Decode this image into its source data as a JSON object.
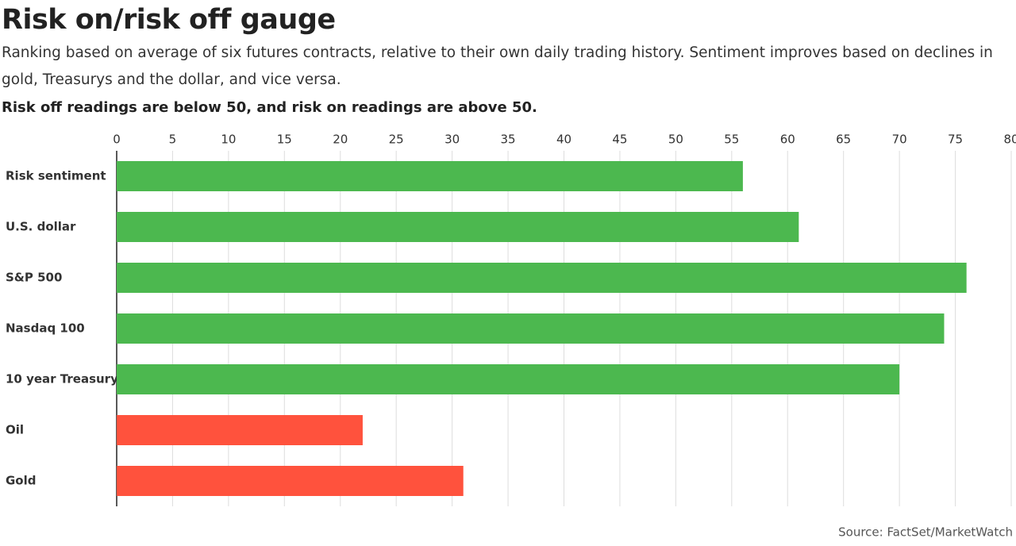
{
  "chart_data": {
    "type": "bar",
    "orientation": "horizontal",
    "title": "Risk on/risk off gauge",
    "subtitle": "Ranking based on average of six futures contracts, relative to their own daily trading history. Sentiment improves based on declines in gold, Treasurys and the dollar, and vice versa.",
    "note": "Risk off readings are below 50, and risk on readings are above 50.",
    "source": "Source: FactSet/MarketWatch",
    "categories": [
      "Risk sentiment",
      "U.S. dollar",
      "S&P 500",
      "Nasdaq 100",
      "10 year Treasury",
      "Oil",
      "Gold"
    ],
    "values": [
      56,
      61,
      76,
      74,
      70,
      22,
      31
    ],
    "colors": [
      "#4cb84f",
      "#4cb84f",
      "#4cb84f",
      "#4cb84f",
      "#4cb84f",
      "#ff523d",
      "#ff523d"
    ],
    "xlim": [
      0,
      80
    ],
    "xticks": [
      0,
      5,
      10,
      15,
      20,
      25,
      30,
      35,
      40,
      45,
      50,
      55,
      60,
      65,
      70,
      75,
      80
    ],
    "grid": true
  }
}
